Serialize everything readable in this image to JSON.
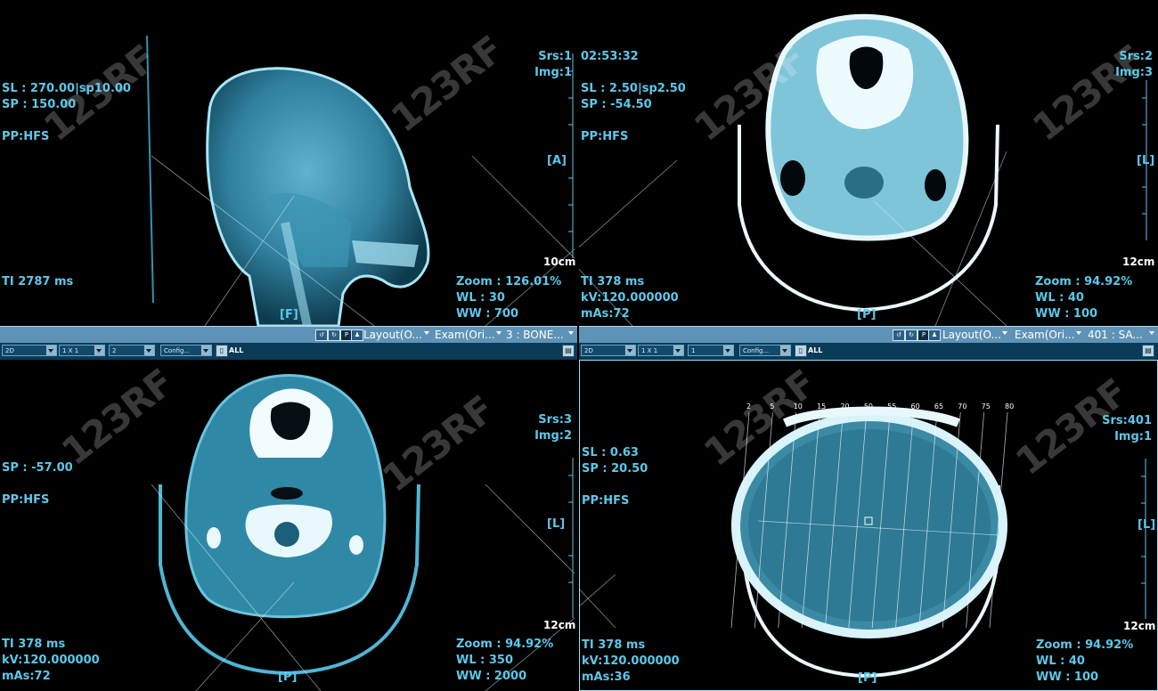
{
  "watermark": "123RF",
  "viewports": [
    {
      "id": "sagittal",
      "top_right": [
        "Srs:1",
        "Img:1"
      ],
      "left_info": [
        "SL : 270.00|sp10.00",
        "SP : 150.00",
        "",
        "PP:HFS"
      ],
      "orientation_right": "[A]",
      "orientation_bottom": "[F]",
      "scale": "10cm",
      "ti": "TI 2787 ms",
      "zoom": [
        "Zoom : 126.01%",
        "WL : 30",
        "WW : 700"
      ]
    },
    {
      "id": "axial-mandible",
      "time": "02:53:32",
      "top_right": [
        "Srs:2",
        "Img:3"
      ],
      "left_info": [
        "SL : 2.50|sp2.50",
        "SP : -54.50",
        "",
        "PP:HFS"
      ],
      "orientation_right": "[L]",
      "orientation_bottom": "[P]",
      "scale": "12cm",
      "acq": [
        "TI 378 ms",
        "kV:120.000000",
        "mAs:72"
      ],
      "zoom": [
        "Zoom : 94.92%",
        "WL : 40",
        "WW : 100"
      ]
    },
    {
      "id": "axial-bone",
      "top_right": [
        "Srs:3",
        "Img:2"
      ],
      "left_info": [
        "SP : -57.00",
        "",
        "PP:HFS"
      ],
      "orientation_right": "[L]",
      "orientation_bottom": "[P]",
      "scale": "12cm",
      "acq": [
        "TI 378 ms",
        "kV:120.000000",
        "mAs:72"
      ],
      "zoom": [
        "Zoom : 94.92%",
        "WL : 350",
        "WW : 2000"
      ]
    },
    {
      "id": "axial-brain",
      "top_right": [
        "Srs:401",
        "Img:1"
      ],
      "left_info": [
        "SL : 0.63",
        "SP : 20.50",
        "",
        "PP:HFS"
      ],
      "orientation_right": "[L]",
      "orientation_bottom": "[P]",
      "scale": "12cm",
      "acq": [
        "TI 378 ms",
        "kV:120.000000",
        "mAs:36"
      ],
      "zoom": [
        "Zoom : 94.92%",
        "WL : 40",
        "WW : 100"
      ],
      "slice_numbers": [
        "2",
        "5",
        "10",
        "15",
        "20",
        "50",
        "55",
        "60",
        "65",
        "70",
        "75",
        "80"
      ]
    }
  ],
  "toolbar_left": {
    "tabs": [
      "Layout(O...",
      "Exam(Ori...",
      "3 : BONE..."
    ],
    "selects": [
      "2D",
      "1 X 1",
      "2",
      "Config..."
    ],
    "all_label": "ALL"
  },
  "toolbar_right": {
    "tabs": [
      "Layout(O...",
      "Exam(Ori...",
      "401 : SA..."
    ],
    "selects": [
      "2D",
      "1 X 1",
      "1",
      "Config..."
    ],
    "all_label": "ALL"
  },
  "colors": {
    "overlay_text": "#5cc8ea",
    "image_tint": "#3aa7c4",
    "toolbar": "#5e93b7"
  }
}
